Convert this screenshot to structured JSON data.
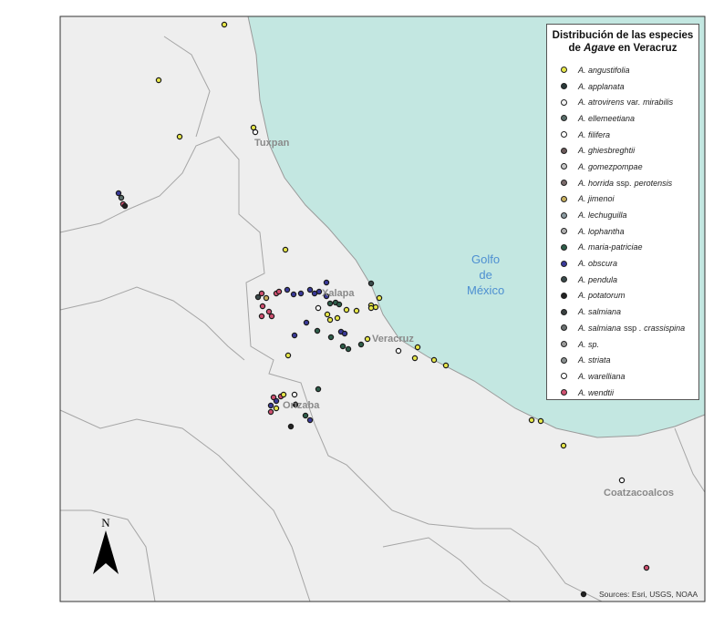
{
  "legend": {
    "title_line1": "Distribución de las especies",
    "title_pre": "de ",
    "title_genus": "Agave",
    "title_post": " en Veracruz",
    "items": [
      {
        "genus": "A.",
        "epithet": "angustifolia",
        "color": "#e8e84a"
      },
      {
        "genus": "A.",
        "epithet": "applanata",
        "color": "#2a3a3a"
      },
      {
        "genus": "A.",
        "epithet": "atrovirens",
        "rank": "var.",
        "infra": "mirabilis",
        "color": "#f4f4f4"
      },
      {
        "genus": "A.",
        "epithet": "ellemeetiana",
        "color": "#5a6e6a"
      },
      {
        "genus": "A.",
        "epithet": "filifera",
        "color": "#ffffff"
      },
      {
        "genus": "A.",
        "epithet": "ghiesbreghtii",
        "color": "#6c5a5a"
      },
      {
        "genus": "A.",
        "epithet": "gomezpompae",
        "color": "#c8c8c8"
      },
      {
        "genus": "A.",
        "epithet": "horrida",
        "rank": "ssp.",
        "infra": "perotensis",
        "color": "#7a6a6a"
      },
      {
        "genus": "A.",
        "epithet": "jimenoi",
        "color": "#c8b060"
      },
      {
        "genus": "A.",
        "epithet": "lechuguilla",
        "color": "#8a9aa0"
      },
      {
        "genus": "A.",
        "epithet": "lophantha",
        "color": "#b0b0b0"
      },
      {
        "genus": "A.",
        "epithet": "maria-patriciae",
        "color": "#2e5e4a"
      },
      {
        "genus": "A.",
        "epithet": "obscura",
        "color": "#3a3a9a"
      },
      {
        "genus": "A.",
        "epithet": "pendula",
        "color": "#3a4a4a"
      },
      {
        "genus": "A.",
        "epithet": "potatorum",
        "color": "#222222"
      },
      {
        "genus": "A.",
        "epithet": "salmiana",
        "color": "#3a4040"
      },
      {
        "genus": "A.",
        "epithet": "salmiana",
        "rank": "ssp .",
        "infra": "crassispina",
        "color": "#6a7070"
      },
      {
        "genus": "A.",
        "epithet": "sp.",
        "color": "#9a9a9a"
      },
      {
        "genus": "A.",
        "epithet": "striata",
        "color": "#8a9090"
      },
      {
        "genus": "A.",
        "epithet": "warelliana",
        "color": "#ffffff"
      },
      {
        "genus": "A.",
        "epithet": "wendtii",
        "color": "#d05070"
      }
    ]
  },
  "places": {
    "tuxpan": "Tuxpan",
    "xalapa": "Xalapa",
    "veracruz": "Veracruz",
    "orizaba": "Orizaba",
    "coatzacoalcos": "Coatzacoalcos"
  },
  "gulf": {
    "line1": "Golfo",
    "line2": "de",
    "line3": "México"
  },
  "north": "N",
  "sources": "Sources: Esri, USGS, NOAA",
  "colors": {
    "sea": "#c3e7e1",
    "land": "#efefef",
    "boundary": "#9a9a9a"
  }
}
